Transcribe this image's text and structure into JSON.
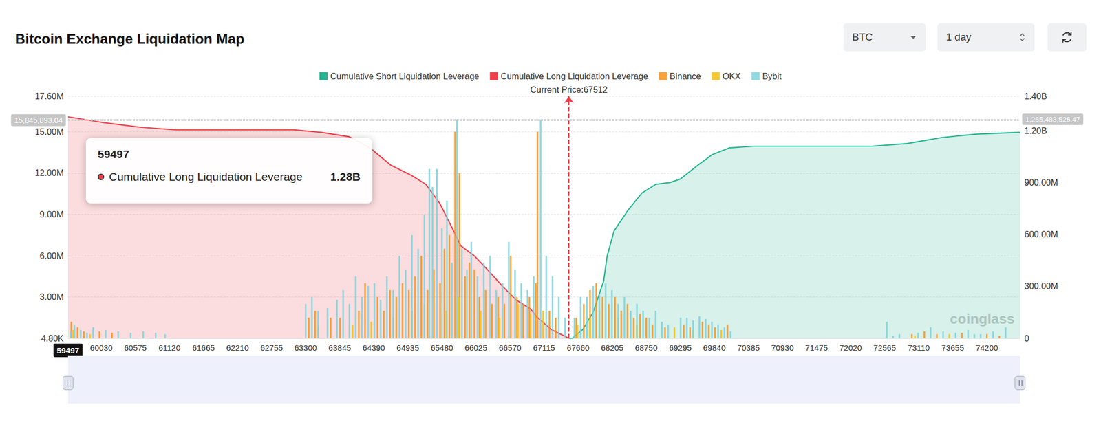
{
  "chart_data": {
    "type": "bar",
    "title": "Bitcoin Exchange Liquidation Map",
    "controls": [
      "BTC",
      "1 day"
    ],
    "watermark": "coinglass",
    "xlim": [
      59497,
      74731
    ],
    "xticks": [
      59497,
      60030,
      60575,
      61120,
      61665,
      62210,
      62755,
      63300,
      63845,
      64390,
      64935,
      65480,
      66025,
      66570,
      67115,
      67660,
      68205,
      68750,
      69295,
      69840,
      70385,
      70930,
      71475,
      72020,
      72565,
      73110,
      73655,
      74200
    ],
    "ylim": [
      4800,
      17600000
    ],
    "yticks": [
      {
        "value": 4800,
        "label": "4.80K"
      },
      {
        "value": 3000000,
        "label": "3.00M"
      },
      {
        "value": 6000000,
        "label": "6.00M"
      },
      {
        "value": 9000000,
        "label": "9.00M"
      },
      {
        "value": 12000000,
        "label": "12.00M"
      },
      {
        "value": 15000000,
        "label": "15.00M"
      },
      {
        "value": 17600000,
        "label": "17.60M"
      }
    ],
    "y2lim": [
      0,
      1400000000
    ],
    "y2ticks": [
      0,
      {
        "value": 300000000,
        "label": "300.00M"
      },
      {
        "value": 600000000,
        "label": "600.00M"
      },
      {
        "value": 900000000,
        "label": "900.00M"
      },
      {
        "value": 1200000000,
        "label": "1.20B"
      },
      {
        "value": 1400000000,
        "label": "1.40B"
      }
    ],
    "grid": true,
    "legend": "top",
    "series": [
      {
        "name": "Cumulative Short Liquidation Leverage",
        "type": "area",
        "axis": "y2",
        "color": "#26b492",
        "x": [
          67512,
          67566,
          67733,
          67900,
          68068,
          68124,
          68235,
          68458,
          68682,
          68905,
          69128,
          69295,
          69575,
          69798,
          70077,
          70467,
          72364,
          72925,
          73480,
          74038,
          74731
        ],
        "values": [
          0,
          0,
          50000000,
          150000000,
          330000000,
          475000000,
          620000000,
          740000000,
          840000000,
          890000000,
          900000000,
          920000000,
          1000000000,
          1060000000,
          1100000000,
          1110000000,
          1110000000,
          1125000000,
          1160000000,
          1180000000,
          1190000000
        ]
      },
      {
        "name": "Cumulative Long Liquidation Leverage",
        "type": "area",
        "axis": "y2",
        "color": "#f0404b",
        "x": [
          59497,
          60088,
          60646,
          61204,
          63102,
          63548,
          63995,
          64329,
          64664,
          64999,
          65222,
          65445,
          65668,
          65780,
          66003,
          66226,
          66450,
          66673,
          66896,
          67008,
          67231,
          67454,
          67512
        ],
        "values": [
          1280000000,
          1245000000,
          1220000000,
          1205000000,
          1205000000,
          1190000000,
          1165000000,
          1100000000,
          1000000000,
          940000000,
          890000000,
          780000000,
          620000000,
          535000000,
          475000000,
          390000000,
          300000000,
          220000000,
          170000000,
          120000000,
          50000000,
          10000000,
          0
        ]
      },
      {
        "name": "Binance",
        "type": "bar",
        "color": "#f7931a",
        "x": [
          59550,
          59650,
          59750,
          60000,
          60200,
          63350,
          63450,
          63700,
          63850,
          64150,
          64250,
          64450,
          64550,
          64650,
          64750,
          64850,
          64950,
          65050,
          65150,
          65250,
          65350,
          65450,
          65520,
          65600,
          65690,
          65760,
          65850,
          65920,
          66000,
          66080,
          66180,
          66280,
          66380,
          66480,
          66580,
          66680,
          66780,
          66880,
          66980,
          67010,
          67200,
          67300,
          67630,
          67750,
          67850,
          67950,
          68050,
          68150,
          68250,
          68350,
          68450,
          68550,
          68650,
          68750,
          68850,
          69050,
          69350,
          69450,
          69650,
          69750,
          69850,
          70050,
          73000,
          73200,
          73400,
          73800,
          74200,
          74400
        ],
        "values": [
          1200000,
          800000,
          500000,
          500000,
          400000,
          1500000,
          2000000,
          1500000,
          1500000,
          2000000,
          4000000,
          3000000,
          2000000,
          3500000,
          3000000,
          4000000,
          3500000,
          4500000,
          6000000,
          3500000,
          5000000,
          4000000,
          6500000,
          7500000,
          15000000,
          12000000,
          4500000,
          5500000,
          5000000,
          3000000,
          3500000,
          2500000,
          3000000,
          2500000,
          6000000,
          3000000,
          2500000,
          3000000,
          4000000,
          15000000,
          2000000,
          1500000,
          1500000,
          2500000,
          3500000,
          4000000,
          3000000,
          2500000,
          3000000,
          2000000,
          2500000,
          1500000,
          1800000,
          1500000,
          1000000,
          800000,
          1000000,
          800000,
          1200000,
          1000000,
          800000,
          1000000,
          300000,
          500000,
          300000,
          400000,
          300000,
          200000
        ]
      },
      {
        "name": "OKX",
        "type": "bar",
        "color": "#f5bf0f",
        "x": [
          59580,
          59850,
          63500,
          64050,
          64350,
          64700,
          65000,
          65200,
          65550,
          65750,
          66100,
          66400,
          66700,
          66900,
          67100,
          67650,
          67850,
          68000,
          68300,
          68600,
          69200,
          69500,
          69950,
          73050,
          73600
        ],
        "values": [
          600000,
          300000,
          800000,
          1000000,
          1200000,
          1500000,
          2000000,
          2500000,
          2000000,
          3000000,
          2000000,
          1500000,
          2500000,
          1800000,
          2000000,
          1000000,
          1500000,
          2000000,
          1500000,
          1000000,
          800000,
          600000,
          600000,
          200000,
          300000
        ]
      },
      {
        "name": "Bybit",
        "type": "bar",
        "color": "#7fd2da",
        "x": [
          59540,
          59600,
          59700,
          59800,
          59900,
          60100,
          60300,
          60500,
          60700,
          60900,
          61050,
          63300,
          63400,
          63500,
          63650,
          63800,
          63900,
          64000,
          64100,
          64200,
          64300,
          64400,
          64500,
          64600,
          64700,
          64800,
          64900,
          65000,
          65100,
          65200,
          65280,
          65330,
          65400,
          65480,
          65560,
          65640,
          65720,
          65800,
          65880,
          65950,
          66050,
          66150,
          66250,
          66350,
          66450,
          66550,
          66650,
          66750,
          66850,
          66950,
          67060,
          67150,
          67250,
          67350,
          67450,
          67600,
          67700,
          67800,
          67900,
          68000,
          68100,
          68200,
          68300,
          68400,
          68500,
          68600,
          68700,
          68800,
          68900,
          69000,
          69100,
          69300,
          69400,
          69500,
          69600,
          69700,
          69800,
          69900,
          70000,
          70100,
          72600,
          72700,
          72800,
          73100,
          73300,
          73500,
          73700,
          73900,
          74000,
          74100,
          74300,
          74500
        ],
        "values": [
          500000,
          1000000,
          600000,
          400000,
          800000,
          600000,
          500000,
          400000,
          500000,
          400000,
          300000,
          2500000,
          3000000,
          2000000,
          2200000,
          2800000,
          3500000,
          2500000,
          4500000,
          3000000,
          3800000,
          4000000,
          2800000,
          4500000,
          3500000,
          6000000,
          5000000,
          7500000,
          6500000,
          9000000,
          12300000,
          11000000,
          12300000,
          8000000,
          10000000,
          5500000,
          15900000,
          6500000,
          5000000,
          7000000,
          4500000,
          5500000,
          6000000,
          3500000,
          4000000,
          7000000,
          5000000,
          4000000,
          3500000,
          4500000,
          15900000,
          6000000,
          4500000,
          3000000,
          1500000,
          1500000,
          3000000,
          3000000,
          3800000,
          3200000,
          4000000,
          3500000,
          2500000,
          3000000,
          2000000,
          2500000,
          2000000,
          1500000,
          2000000,
          1200000,
          1000000,
          1500000,
          1500000,
          1300000,
          1600000,
          1400000,
          1200000,
          1000000,
          800000,
          500000,
          1200000,
          200000,
          300000,
          400000,
          800000,
          500000,
          400000,
          600000,
          300000,
          300000,
          500000,
          800000
        ]
      }
    ],
    "annotations": [
      {
        "text": "Current Price:67512",
        "x": 67512
      },
      {
        "text": "15,845,893.04",
        "y": 15845893.04
      },
      {
        "text": "1,265,483,526.47",
        "y2": 1265483526.47
      }
    ],
    "tooltip": {
      "x": 59497,
      "series": "Cumulative Long Liquidation Leverage",
      "value": 1280000000,
      "label": "1.28B"
    }
  }
}
